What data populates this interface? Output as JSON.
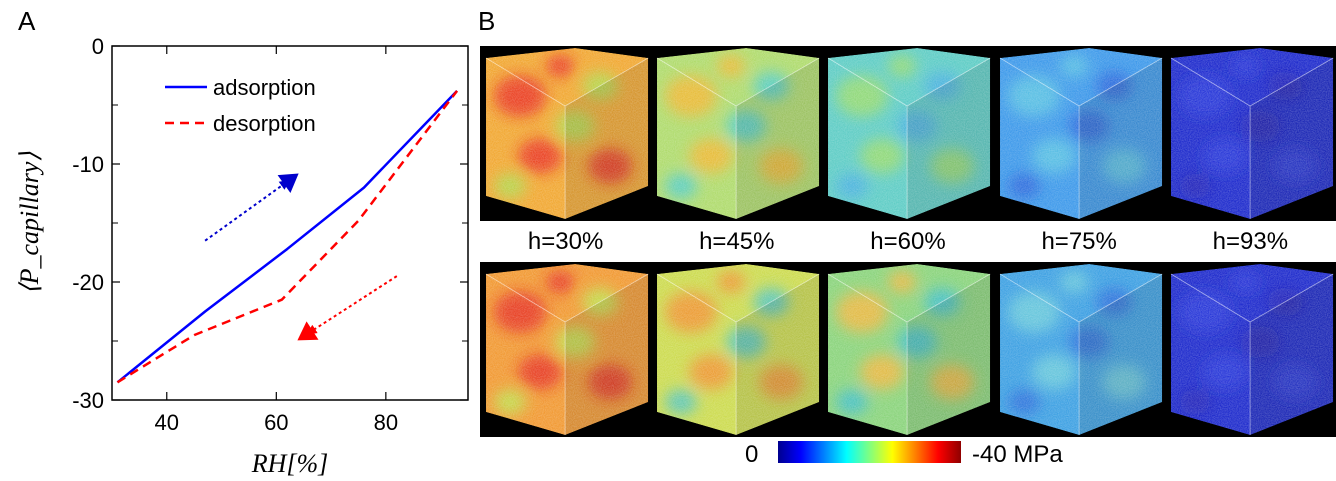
{
  "panel_labels": {
    "a": "A",
    "b": "B"
  },
  "chart_data": {
    "type": "line",
    "xlabel": "RH[%]",
    "ylabel": "⟨P_capillary⟩",
    "xlim": [
      30,
      95
    ],
    "ylim": [
      -30,
      0
    ],
    "x_ticks": [
      40,
      60,
      80
    ],
    "y_ticks": [
      0,
      -10,
      -20,
      -30
    ],
    "x_tick_labels": [
      "40",
      "60",
      "80"
    ],
    "y_tick_labels": [
      "0",
      "-10",
      "-20",
      "-30"
    ],
    "grid": false,
    "legend": "top-center",
    "series": [
      {
        "name": "adsorption",
        "style": "solid",
        "color": "#0000ff",
        "x": [
          31,
          47,
          62,
          76,
          93
        ],
        "y": [
          -28.5,
          -22.5,
          -17.2,
          -12.0,
          -3.8
        ]
      },
      {
        "name": "desorption",
        "style": "dashed",
        "color": "#ff0000",
        "x": [
          31,
          45,
          61,
          75,
          93
        ],
        "y": [
          -28.5,
          -24.5,
          -21.5,
          -14.8,
          -3.8
        ]
      }
    ],
    "annotations": [
      {
        "type": "arrow",
        "color": "#0000cc",
        "from": [
          47,
          -16.5
        ],
        "to": [
          62,
          -11.5
        ]
      },
      {
        "type": "arrow",
        "color": "#ff0000",
        "from": [
          82,
          -19.5
        ],
        "to": [
          66,
          -24.3
        ]
      }
    ]
  },
  "humidity_labels": [
    "h=30%",
    "h=45%",
    "h=60%",
    "h=75%",
    "h=93%"
  ],
  "cube_colors": {
    "adsorption": [
      {
        "base": "#f0a020",
        "hot": "#e82010",
        "cool": "#a8d840"
      },
      {
        "base": "#a8d860",
        "hot": "#f0b020",
        "cool": "#40c8c8"
      },
      {
        "base": "#50c8c0",
        "hot": "#90d860",
        "cool": "#38a8e0"
      },
      {
        "base": "#2c90e8",
        "hot": "#50c0e0",
        "cool": "#1858d8"
      },
      {
        "base": "#0a18c8",
        "hot": "#1428d8",
        "cool": "#0810b0"
      }
    ],
    "desorption": [
      {
        "base": "#f09020",
        "hot": "#e42010",
        "cool": "#b8e040"
      },
      {
        "base": "#c8d840",
        "hot": "#f08820",
        "cool": "#40c0c0"
      },
      {
        "base": "#80d070",
        "hot": "#f0b030",
        "cool": "#30b8c8"
      },
      {
        "base": "#2c98e0",
        "hot": "#60c8d8",
        "cool": "#1860d8"
      },
      {
        "base": "#0a18c8",
        "hot": "#1428d8",
        "cool": "#0810b0"
      }
    ]
  },
  "colorbar": {
    "min_label": "0",
    "max_label": "-40 MPa"
  }
}
